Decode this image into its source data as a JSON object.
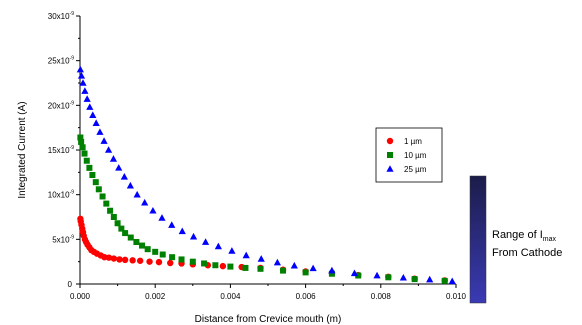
{
  "chart_data": {
    "type": "scatter",
    "xlabel": "Distance from Crevice mouth (m)",
    "ylabel": "Integrated Current (A)",
    "xlim": [
      0,
      0.01
    ],
    "ylim": [
      0,
      3e-08
    ],
    "x_ticks": [
      "0.000",
      "0.002",
      "0.004",
      "0.006",
      "0.008",
      "0.010"
    ],
    "y_ticks_mantissa": [
      "0",
      "5x10",
      "10x10",
      "15x10",
      "20x10",
      "25x10",
      "30x10"
    ],
    "y_tick_exponent": "-9",
    "grid": false,
    "legend_position": "right",
    "series": [
      {
        "name": "1 µm",
        "marker": "circle",
        "color": "#ff0000",
        "points": [
          [
            1e-05,
            7.3e-09
          ],
          [
            2e-05,
            7e-09
          ],
          [
            4e-05,
            6.6e-09
          ],
          [
            6e-05,
            6.2e-09
          ],
          [
            8e-05,
            5.8e-09
          ],
          [
            0.0001,
            5.4e-09
          ],
          [
            0.00013,
            5e-09
          ],
          [
            0.00016,
            4.7e-09
          ],
          [
            0.0002,
            4.4e-09
          ],
          [
            0.00025,
            4.1e-09
          ],
          [
            0.0003,
            3.8e-09
          ],
          [
            0.00037,
            3.6e-09
          ],
          [
            0.00045,
            3.4e-09
          ],
          [
            0.00055,
            3.2e-09
          ],
          [
            0.00065,
            3e-09
          ],
          [
            0.00077,
            2.95e-09
          ],
          [
            0.0009,
            2.85e-09
          ],
          [
            0.00105,
            2.75e-09
          ],
          [
            0.0012,
            2.7e-09
          ],
          [
            0.0014,
            2.65e-09
          ],
          [
            0.0016,
            2.6e-09
          ],
          [
            0.00185,
            2.5e-09
          ],
          [
            0.0021,
            2.45e-09
          ],
          [
            0.0024,
            2.35e-09
          ],
          [
            0.0027,
            2.3e-09
          ],
          [
            0.003,
            2.2e-09
          ],
          [
            0.0034,
            2.1e-09
          ],
          [
            0.0038,
            2e-09
          ],
          [
            0.0043,
            1.9e-09
          ],
          [
            0.0048,
            1.8e-09
          ],
          [
            0.0054,
            1.6e-09
          ],
          [
            0.006,
            1.4e-09
          ],
          [
            0.0067,
            1.2e-09
          ],
          [
            0.0074,
            1e-09
          ],
          [
            0.0082,
            8e-10
          ],
          [
            0.0089,
            6e-10
          ],
          [
            0.0097,
            4e-10
          ]
        ]
      },
      {
        "name": "10 µm",
        "marker": "square",
        "color": "#008000",
        "points": [
          [
            1e-05,
            1.64e-08
          ],
          [
            3e-05,
            1.59e-08
          ],
          [
            7e-05,
            1.53e-08
          ],
          [
            0.00012,
            1.46e-08
          ],
          [
            0.00018,
            1.38e-08
          ],
          [
            0.00025,
            1.3e-08
          ],
          [
            0.00033,
            1.22e-08
          ],
          [
            0.00042,
            1.14e-08
          ],
          [
            0.0005,
            1.06e-08
          ],
          [
            0.0006,
            9.8e-09
          ],
          [
            0.0007,
            9e-09
          ],
          [
            0.0008,
            8.2e-09
          ],
          [
            0.0009,
            7.5e-09
          ],
          [
            0.001,
            6.8e-09
          ],
          [
            0.0011,
            6.2e-09
          ],
          [
            0.0012,
            5.7e-09
          ],
          [
            0.00135,
            5.2e-09
          ],
          [
            0.0015,
            4.7e-09
          ],
          [
            0.00165,
            4.3e-09
          ],
          [
            0.0018,
            3.9e-09
          ],
          [
            0.002,
            3.6e-09
          ],
          [
            0.0022,
            3.3e-09
          ],
          [
            0.00245,
            3e-09
          ],
          [
            0.0027,
            2.75e-09
          ],
          [
            0.003,
            2.5e-09
          ],
          [
            0.0033,
            2.3e-09
          ],
          [
            0.0036,
            2.1e-09
          ],
          [
            0.004,
            1.95e-09
          ],
          [
            0.0044,
            1.8e-09
          ],
          [
            0.0048,
            1.7e-09
          ],
          [
            0.0054,
            1.5e-09
          ],
          [
            0.006,
            1.3e-09
          ],
          [
            0.0067,
            1.15e-09
          ],
          [
            0.0074,
            9.5e-10
          ],
          [
            0.0082,
            7.5e-10
          ],
          [
            0.0089,
            5.5e-10
          ],
          [
            0.0097,
            3.5e-10
          ]
        ]
      },
      {
        "name": "25 µm",
        "marker": "triangle",
        "color": "#0000ff",
        "points": [
          [
            1e-05,
            2.4e-08
          ],
          [
            4e-05,
            2.33e-08
          ],
          [
            8e-05,
            2.25e-08
          ],
          [
            0.00013,
            2.16e-08
          ],
          [
            0.00019,
            2.07e-08
          ],
          [
            0.00026,
            1.98e-08
          ],
          [
            0.00034,
            1.89e-08
          ],
          [
            0.00043,
            1.8e-08
          ],
          [
            0.00053,
            1.7e-08
          ],
          [
            0.00064,
            1.6e-08
          ],
          [
            0.00076,
            1.5e-08
          ],
          [
            0.00089,
            1.4e-08
          ],
          [
            0.00103,
            1.3e-08
          ],
          [
            0.00118,
            1.2e-08
          ],
          [
            0.00134,
            1.1e-08
          ],
          [
            0.00152,
            1e-08
          ],
          [
            0.00172,
            9.1e-09
          ],
          [
            0.00194,
            8.2e-09
          ],
          [
            0.00218,
            7.4e-09
          ],
          [
            0.00244,
            6.6e-09
          ],
          [
            0.00272,
            5.9e-09
          ],
          [
            0.00302,
            5.3e-09
          ],
          [
            0.00334,
            4.7e-09
          ],
          [
            0.00368,
            4.2e-09
          ],
          [
            0.00404,
            3.7e-09
          ],
          [
            0.00442,
            3.2e-09
          ],
          [
            0.00482,
            2.8e-09
          ],
          [
            0.00525,
            2.4e-09
          ],
          [
            0.0057,
            2.05e-09
          ],
          [
            0.0062,
            1.75e-09
          ],
          [
            0.0067,
            1.5e-09
          ],
          [
            0.0073,
            1.2e-09
          ],
          [
            0.0079,
            9.5e-10
          ],
          [
            0.0086,
            7e-10
          ],
          [
            0.0093,
            5e-10
          ],
          [
            0.0099,
            3e-10
          ]
        ]
      }
    ],
    "side_label": {
      "line1": "Range of I",
      "subscript": "max",
      "line2": "From Cathode",
      "gradient_colors": [
        "#1c1c4a",
        "#3a3ab4"
      ]
    }
  }
}
